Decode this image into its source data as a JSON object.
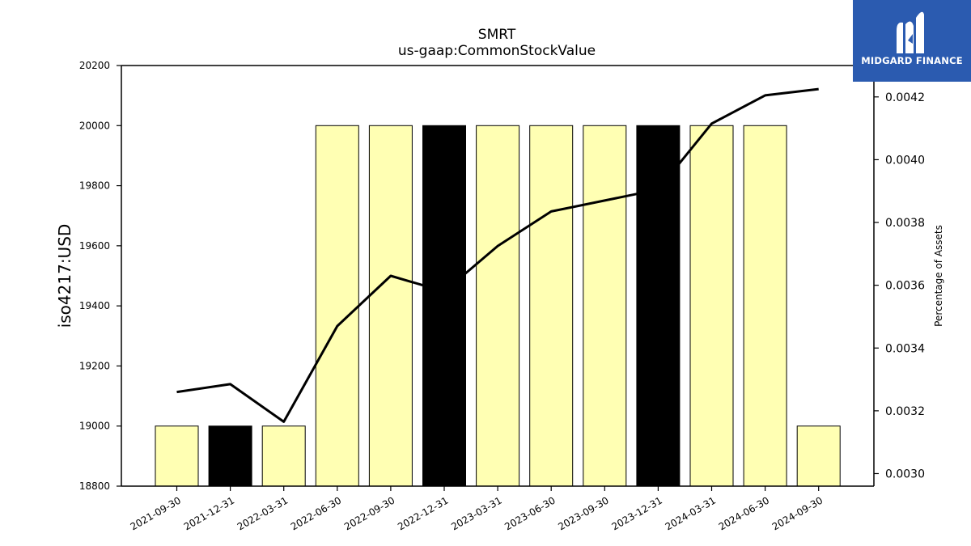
{
  "chart_data": {
    "type": "bar",
    "title": "SMRT",
    "subtitle": "us-gaap:CommonStockValue",
    "ylabel": "iso4217:USD",
    "ylabel_right": "Percentage of Assets",
    "ylim": [
      18800,
      20200
    ],
    "ylim_right": [
      0.00296,
      0.0043
    ],
    "yticks": [
      18800,
      19000,
      19200,
      19400,
      19600,
      19800,
      20000,
      20200
    ],
    "yticks_right": [
      "0.0030",
      "0.0032",
      "0.0034",
      "0.0036",
      "0.0038",
      "0.0040",
      "0.0042"
    ],
    "categories": [
      "2021-09-30",
      "2021-12-31",
      "2022-03-31",
      "2022-06-30",
      "2022-09-30",
      "2022-12-31",
      "2023-03-31",
      "2023-06-30",
      "2023-09-30",
      "2023-12-31",
      "2024-03-31",
      "2024-06-30",
      "2024-09-30"
    ],
    "series": [
      {
        "kind": "bar",
        "values": [
          19000,
          19000,
          19000,
          20000,
          20000,
          20000,
          20000,
          20000,
          20000,
          20000,
          20000,
          20000,
          19000
        ],
        "colors": [
          "#ffffb3",
          "#000000",
          "#ffffb3",
          "#ffffb3",
          "#ffffb3",
          "#000000",
          "#ffffb3",
          "#ffffb3",
          "#ffffb3",
          "#000000",
          "#ffffb3",
          "#ffffb3",
          "#ffffb3"
        ]
      },
      {
        "kind": "line",
        "axis": "right",
        "values": [
          0.00326,
          0.003285,
          0.003165,
          0.00347,
          0.00363,
          0.00358,
          0.003725,
          0.003835,
          0.00387,
          0.003905,
          0.004115,
          0.004205,
          0.004225
        ],
        "color": "#000000"
      }
    ],
    "grid": false
  },
  "logo": {
    "text": "MIDGARD FINANCE",
    "background": "#2b5bb0"
  }
}
